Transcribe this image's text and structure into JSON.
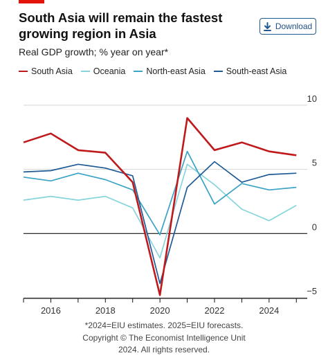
{
  "header": {
    "title": "South Asia will remain the fastest growing region in Asia",
    "subtitle": "Real GDP growth; % year on year*",
    "download_label": "Download"
  },
  "footnote": {
    "line1": "*2024=EIU estimates. 2025=EIU forecasts.",
    "line2": "Copyright © The Economist Intelligence Unit",
    "line3": "2024. All rights reserved."
  },
  "chart_data": {
    "type": "line",
    "title": "South Asia will remain the fastest growing region in Asia",
    "subtitle": "Real GDP growth; % year on year*",
    "x": [
      2015,
      2016,
      2017,
      2018,
      2019,
      2020,
      2021,
      2022,
      2023,
      2024,
      2025
    ],
    "x_ticks": [
      "2016",
      "2018",
      "2020",
      "2022",
      "2024"
    ],
    "y_ticks": [
      "10",
      "5",
      "0",
      "−5"
    ],
    "ylim": [
      -5,
      10
    ],
    "grid": true,
    "legend": "top",
    "series": [
      {
        "name": "South Asia",
        "color": "#c0191b",
        "values": [
          7.1,
          7.8,
          6.5,
          6.3,
          4.0,
          -4.8,
          9.0,
          6.5,
          7.1,
          6.4,
          6.1
        ]
      },
      {
        "name": "Oceania",
        "color": "#86d4dc",
        "values": [
          2.6,
          2.9,
          2.6,
          2.9,
          2.0,
          -1.9,
          5.4,
          3.8,
          1.9,
          1.0,
          2.2
        ]
      },
      {
        "name": "North-east Asia",
        "color": "#3aa3c6",
        "values": [
          4.4,
          4.1,
          4.7,
          4.2,
          3.4,
          -0.1,
          6.4,
          2.3,
          3.9,
          3.4,
          3.6
        ]
      },
      {
        "name": "South-east Asia",
        "color": "#1f5a95",
        "values": [
          4.8,
          4.9,
          5.4,
          5.1,
          4.5,
          -3.9,
          3.6,
          5.6,
          4.0,
          4.6,
          4.7
        ]
      }
    ]
  }
}
